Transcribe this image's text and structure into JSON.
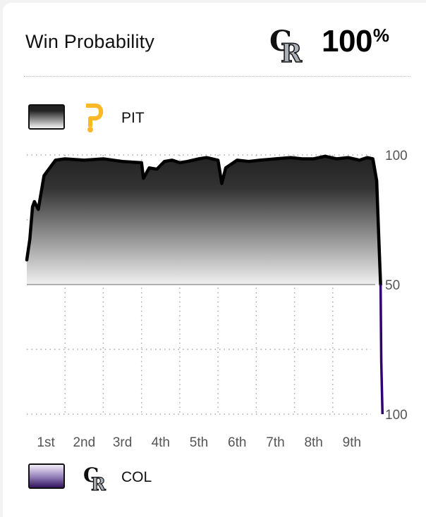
{
  "header": {
    "title": "Win Probability",
    "leader_pct": "100",
    "leader_pct_sign": "%",
    "leader_logo": "rockies-cr-logo"
  },
  "legend": {
    "top": {
      "label": "PIT",
      "logo": "pirates-p-logo",
      "color": "#fdb827"
    },
    "bottom": {
      "label": "COL",
      "logo": "rockies-cr-logo",
      "color": "#33006f"
    }
  },
  "chart_data": {
    "type": "area",
    "title": "Win Probability",
    "xlabel": "",
    "ylabel": "",
    "x_categories": [
      "1st",
      "2nd",
      "3rd",
      "4th",
      "5th",
      "6th",
      "7th",
      "8th",
      "9th"
    ],
    "y_tick_labels": [
      "100",
      "50",
      "100"
    ],
    "ylim": [
      -100,
      100
    ],
    "grid": true,
    "series": [
      {
        "name": "PIT",
        "x_innings": [
          0.0,
          0.08,
          0.15,
          0.2,
          0.3,
          0.45,
          0.6,
          0.75,
          1.0,
          1.5,
          2.0,
          2.5,
          3.0,
          3.05,
          3.2,
          3.4,
          3.6,
          3.8,
          4.0,
          4.2,
          4.5,
          4.7,
          5.0,
          5.1,
          5.2,
          5.3,
          5.5,
          5.8,
          6.1,
          6.5,
          6.9,
          7.2,
          7.5,
          7.8,
          8.1,
          8.4,
          8.7,
          8.9,
          9.05,
          9.15,
          9.2,
          9.25
        ],
        "home_win_pct": [
          19,
          35,
          60,
          64,
          58,
          84,
          90,
          96,
          97,
          96,
          97,
          95,
          94,
          82,
          90,
          89,
          95,
          96,
          94,
          95,
          97,
          98,
          96,
          78,
          90,
          92,
          96,
          95,
          96,
          97,
          98,
          97,
          97,
          99,
          97,
          98,
          96,
          98,
          97,
          80,
          40,
          0
        ]
      },
      {
        "name": "COL",
        "x_innings": [
          9.25,
          9.27,
          9.3
        ],
        "home_win_pct": [
          0,
          -60,
          -100
        ]
      }
    ],
    "colors": {
      "line": "#000000",
      "area_top": "#222222",
      "area_bottom": "#f0f0f0",
      "col_line": "#33006f"
    }
  }
}
